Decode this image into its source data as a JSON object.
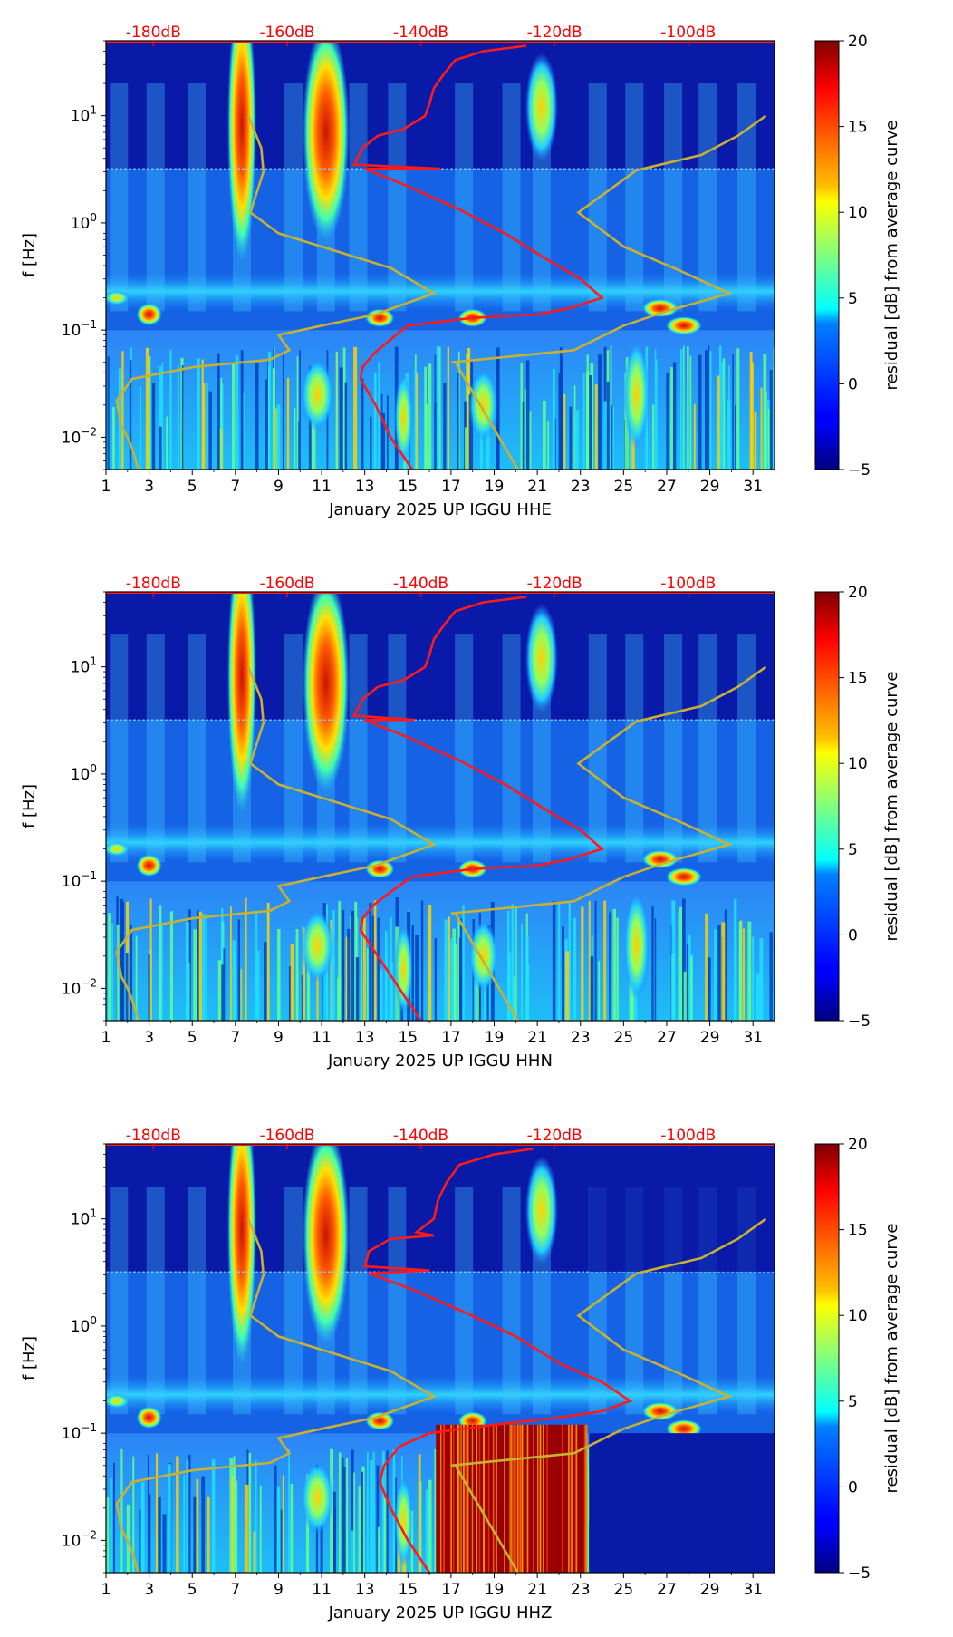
{
  "colors": {
    "reference_curve": "#ff1a1a",
    "noise_model": "#c8b032",
    "db_labels": "#ff0000",
    "colormap": "jet"
  },
  "colorbar": {
    "label": "residual [dB] from average curve",
    "range": [
      -5,
      20
    ],
    "ticks": [
      "−5",
      "0",
      "5",
      "10",
      "15",
      "20"
    ]
  },
  "chart_data": [
    {
      "type": "heatmap",
      "xlabel": "January 2025 UP IGGU  HHE",
      "ylabel": "f [Hz]",
      "x_ticks": [
        "1",
        "3",
        "5",
        "7",
        "9",
        "11",
        "13",
        "15",
        "17",
        "19",
        "21",
        "23",
        "25",
        "27",
        "29",
        "31"
      ],
      "x_range": [
        1,
        32
      ],
      "y_scale": "log",
      "y_range": [
        0.005,
        50
      ],
      "y_ticks": [
        "10^-2",
        "10^-1",
        "10^0",
        "10^1"
      ],
      "top_axis_labels": [
        "-180dB",
        "-160dB",
        "-140dB",
        "-120dB",
        "-100dB"
      ],
      "ref_curve": [
        [
          15.2,
          0.005
        ],
        [
          14.2,
          0.01
        ],
        [
          13.5,
          0.02
        ],
        [
          12.8,
          0.035
        ],
        [
          12.9,
          0.045
        ],
        [
          13.4,
          0.06
        ],
        [
          14.3,
          0.085
        ],
        [
          15,
          0.11
        ],
        [
          18,
          0.13
        ],
        [
          21,
          0.14
        ],
        [
          22.5,
          0.16
        ],
        [
          24,
          0.2
        ],
        [
          23,
          0.3
        ],
        [
          21.5,
          0.45
        ],
        [
          19.5,
          0.8
        ],
        [
          17.5,
          1.3
        ],
        [
          15,
          2.2
        ],
        [
          13,
          3.2
        ],
        [
          16.5,
          3.2
        ],
        [
          12.5,
          3.5
        ],
        [
          12.9,
          5
        ],
        [
          13.6,
          6.5
        ],
        [
          14.8,
          7.5
        ],
        [
          15.8,
          10
        ],
        [
          16,
          13
        ],
        [
          16.2,
          18
        ],
        [
          16.7,
          25
        ],
        [
          17.2,
          33
        ],
        [
          18.5,
          40
        ],
        [
          20.5,
          45
        ]
      ],
      "noise_model": [
        [
          2.5,
          0.005
        ],
        [
          2.2,
          0.008
        ],
        [
          2.0,
          0.01
        ],
        [
          1.7,
          0.013
        ],
        [
          1.5,
          0.022
        ],
        [
          2.2,
          0.035
        ],
        [
          5,
          0.045
        ],
        [
          8.6,
          0.053
        ],
        [
          9.5,
          0.065
        ],
        [
          9,
          0.09
        ],
        [
          11,
          0.11
        ],
        [
          13.5,
          0.14
        ],
        [
          16.2,
          0.22
        ],
        [
          14.2,
          0.38
        ],
        [
          9,
          0.8
        ],
        [
          7.7,
          1.25
        ],
        [
          8.3,
          3
        ],
        [
          8.2,
          5
        ],
        [
          7.6,
          10
        ],
        [
          null,
          null
        ],
        [
          17,
          0.05
        ],
        [
          22.7,
          0.065
        ],
        [
          25,
          0.11
        ],
        [
          27,
          0.15
        ],
        [
          29.9,
          0.22
        ],
        [
          27.6,
          0.36
        ],
        [
          25,
          0.6
        ],
        [
          22.9,
          1.25
        ],
        [
          25.6,
          3.1
        ],
        [
          28.6,
          4.3
        ],
        [
          30.3,
          6.5
        ],
        [
          31.6,
          10
        ],
        [
          null,
          null
        ],
        [
          17.2,
          0.05
        ],
        [
          20.1,
          0.005
        ]
      ]
    },
    {
      "type": "heatmap",
      "xlabel": "January 2025 UP IGGU  HHN",
      "ylabel": "f [Hz]",
      "x_ticks": [
        "1",
        "3",
        "5",
        "7",
        "9",
        "11",
        "13",
        "15",
        "17",
        "19",
        "21",
        "23",
        "25",
        "27",
        "29",
        "31"
      ],
      "x_range": [
        1,
        32
      ],
      "y_scale": "log",
      "y_range": [
        0.005,
        50
      ],
      "y_ticks": [
        "10^-2",
        "10^-1",
        "10^0",
        "10^1"
      ],
      "top_axis_labels": [
        "-180dB",
        "-160dB",
        "-140dB",
        "-120dB",
        "-100dB"
      ],
      "ref_curve": [
        [
          15.6,
          0.005
        ],
        [
          14.6,
          0.01
        ],
        [
          13.6,
          0.02
        ],
        [
          12.8,
          0.035
        ],
        [
          12.9,
          0.045
        ],
        [
          13.4,
          0.06
        ],
        [
          14.4,
          0.085
        ],
        [
          15.2,
          0.11
        ],
        [
          18,
          0.13
        ],
        [
          21,
          0.14
        ],
        [
          22.5,
          0.16
        ],
        [
          24,
          0.2
        ],
        [
          23,
          0.3
        ],
        [
          21.5,
          0.45
        ],
        [
          19.5,
          0.8
        ],
        [
          17.5,
          1.3
        ],
        [
          15,
          2.2
        ],
        [
          13,
          3.2
        ],
        [
          15.3,
          3.2
        ],
        [
          12.5,
          3.5
        ],
        [
          12.9,
          5
        ],
        [
          13.6,
          6.5
        ],
        [
          14.8,
          7.5
        ],
        [
          15.8,
          10
        ],
        [
          16,
          13
        ],
        [
          16.2,
          18
        ],
        [
          16.7,
          25
        ],
        [
          17.2,
          33
        ],
        [
          18.5,
          40
        ],
        [
          20.5,
          45
        ]
      ],
      "noise_model": [
        [
          2.5,
          0.005
        ],
        [
          2.2,
          0.008
        ],
        [
          2.0,
          0.01
        ],
        [
          1.7,
          0.013
        ],
        [
          1.5,
          0.022
        ],
        [
          2.2,
          0.035
        ],
        [
          5,
          0.045
        ],
        [
          8.6,
          0.053
        ],
        [
          9.5,
          0.065
        ],
        [
          9,
          0.09
        ],
        [
          11,
          0.11
        ],
        [
          13.5,
          0.14
        ],
        [
          16.2,
          0.22
        ],
        [
          14.2,
          0.38
        ],
        [
          9,
          0.8
        ],
        [
          7.7,
          1.25
        ],
        [
          8.3,
          3
        ],
        [
          8.2,
          5
        ],
        [
          7.6,
          10
        ],
        [
          null,
          null
        ],
        [
          17,
          0.05
        ],
        [
          22.7,
          0.065
        ],
        [
          25,
          0.11
        ],
        [
          27,
          0.15
        ],
        [
          29.9,
          0.22
        ],
        [
          27.6,
          0.36
        ],
        [
          25,
          0.6
        ],
        [
          22.9,
          1.25
        ],
        [
          25.6,
          3.1
        ],
        [
          28.6,
          4.3
        ],
        [
          30.3,
          6.5
        ],
        [
          31.6,
          10
        ],
        [
          null,
          null
        ],
        [
          17.2,
          0.05
        ],
        [
          20.1,
          0.005
        ]
      ]
    },
    {
      "type": "heatmap",
      "xlabel": "January 2025 UP IGGU  HHZ",
      "ylabel": "f [Hz]",
      "x_ticks": [
        "1",
        "3",
        "5",
        "7",
        "9",
        "11",
        "13",
        "15",
        "17",
        "19",
        "21",
        "23",
        "25",
        "27",
        "29",
        "31"
      ],
      "x_range": [
        1,
        32
      ],
      "y_scale": "log",
      "y_range": [
        0.005,
        50
      ],
      "y_ticks": [
        "10^-2",
        "10^-1",
        "10^0",
        "10^1"
      ],
      "top_axis_labels": [
        "-180dB",
        "-160dB",
        "-140dB",
        "-120dB",
        "-100dB"
      ],
      "ref_curve": [
        [
          16,
          0.005
        ],
        [
          15,
          0.01
        ],
        [
          14.2,
          0.02
        ],
        [
          13.7,
          0.035
        ],
        [
          13.9,
          0.05
        ],
        [
          14.6,
          0.075
        ],
        [
          16,
          0.1
        ],
        [
          19,
          0.12
        ],
        [
          22,
          0.14
        ],
        [
          24,
          0.16
        ],
        [
          25.3,
          0.2
        ],
        [
          24,
          0.3
        ],
        [
          22,
          0.45
        ],
        [
          20,
          0.8
        ],
        [
          17.8,
          1.3
        ],
        [
          15.2,
          2.2
        ],
        [
          13.2,
          3.1
        ],
        [
          16,
          3.3
        ],
        [
          13,
          3.6
        ],
        [
          13.2,
          5
        ],
        [
          14.2,
          6.5
        ],
        [
          16.2,
          7
        ],
        [
          15.4,
          7.5
        ],
        [
          16.2,
          10
        ],
        [
          16.4,
          15
        ],
        [
          16.8,
          22
        ],
        [
          17.4,
          32
        ],
        [
          19,
          40
        ],
        [
          20.8,
          45
        ]
      ],
      "noise_model": [
        [
          2.5,
          0.005
        ],
        [
          2.2,
          0.008
        ],
        [
          2.0,
          0.01
        ],
        [
          1.7,
          0.013
        ],
        [
          1.5,
          0.022
        ],
        [
          2.2,
          0.035
        ],
        [
          5,
          0.045
        ],
        [
          8.6,
          0.053
        ],
        [
          9.5,
          0.065
        ],
        [
          9,
          0.09
        ],
        [
          11,
          0.11
        ],
        [
          13.5,
          0.14
        ],
        [
          16.2,
          0.22
        ],
        [
          14.2,
          0.38
        ],
        [
          9,
          0.8
        ],
        [
          7.7,
          1.25
        ],
        [
          8.3,
          3
        ],
        [
          8.2,
          5
        ],
        [
          7.6,
          10
        ],
        [
          null,
          null
        ],
        [
          17,
          0.05
        ],
        [
          22.7,
          0.065
        ],
        [
          25,
          0.11
        ],
        [
          27,
          0.15
        ],
        [
          29.9,
          0.22
        ],
        [
          27.6,
          0.36
        ],
        [
          25,
          0.6
        ],
        [
          22.9,
          1.25
        ],
        [
          25.6,
          3.1
        ],
        [
          28.6,
          4.3
        ],
        [
          30.3,
          6.5
        ],
        [
          31.6,
          10
        ],
        [
          null,
          null
        ],
        [
          17.2,
          0.05
        ],
        [
          20.1,
          0.005
        ]
      ]
    }
  ]
}
